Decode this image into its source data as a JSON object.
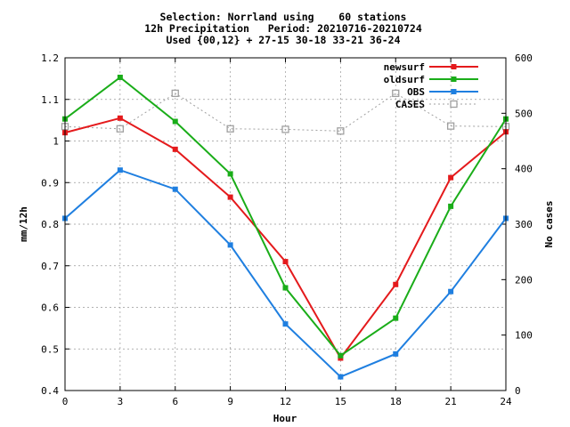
{
  "chart_data": {
    "type": "line",
    "title_lines": [
      "Selection: Norrland using    60 stations",
      "12h Precipitation   Period: 20210716-20210724",
      "Used {00,12} + 27-15 30-18 33-21 36-24"
    ],
    "xlabel": "Hour",
    "ylabel": "mm/12h",
    "y2label": "No cases",
    "x": [
      0,
      3,
      6,
      9,
      12,
      15,
      18,
      21,
      24
    ],
    "xlim": [
      0,
      24
    ],
    "ylim": [
      0.4,
      1.2
    ],
    "y2lim": [
      0,
      600
    ],
    "x_ticks": [
      "0",
      "3",
      "6",
      "9",
      "12",
      "15",
      "18",
      "21",
      "24"
    ],
    "y_ticks": [
      "0.4",
      "0.5",
      "0.6",
      "0.7",
      "0.8",
      "0.9",
      "1",
      "1.1",
      "1.2"
    ],
    "y2_ticks": [
      "0",
      "100",
      "200",
      "300",
      "400",
      "500",
      "600"
    ],
    "grid": true,
    "legend_position": "top-right",
    "series": [
      {
        "name": "newsurf",
        "axis": "left",
        "color": "#e41a1c",
        "marker": "filled-square",
        "values": [
          1.02,
          1.055,
          0.98,
          0.865,
          0.71,
          0.478,
          0.655,
          0.912,
          1.022
        ]
      },
      {
        "name": "oldsurf",
        "axis": "left",
        "color": "#1aad19",
        "marker": "filled-square",
        "values": [
          1.053,
          1.153,
          1.047,
          0.921,
          0.647,
          0.484,
          0.574,
          0.843,
          1.053
        ]
      },
      {
        "name": "OBS",
        "axis": "left",
        "color": "#1f7fe0",
        "marker": "filled-square",
        "values": [
          0.814,
          0.93,
          0.884,
          0.75,
          0.56,
          0.433,
          0.488,
          0.638,
          0.814
        ]
      },
      {
        "name": "CASES",
        "axis": "right",
        "color": "#a0a0a0",
        "marker": "open-square",
        "values": [
          476,
          472,
          536,
          472,
          471,
          468,
          536,
          477,
          476
        ]
      }
    ]
  }
}
